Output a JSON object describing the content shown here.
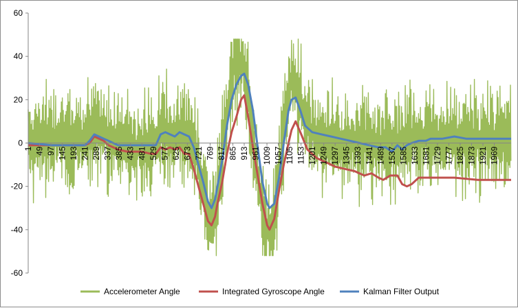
{
  "chart_data": {
    "type": "line",
    "title": "",
    "xlabel": "",
    "ylabel": "",
    "ylim": [
      -60,
      60
    ],
    "yticks": [
      -60,
      -40,
      -20,
      0,
      20,
      40,
      60
    ],
    "xlim": [
      1,
      2040
    ],
    "xticks": [
      1,
      49,
      97,
      145,
      193,
      241,
      289,
      337,
      385,
      433,
      481,
      529,
      577,
      625,
      673,
      721,
      769,
      817,
      865,
      913,
      961,
      1009,
      1057,
      1105,
      1153,
      1201,
      1249,
      1297,
      1345,
      1393,
      1441,
      1489,
      1537,
      1585,
      1633,
      1681,
      1729,
      1777,
      1825,
      1873,
      1921,
      1969
    ],
    "legend_position": "bottom",
    "grid": false,
    "series": [
      {
        "name": "Accelerometer Angle",
        "color": "#9bbb59",
        "noisy": true,
        "x": [
          1,
          60,
          120,
          180,
          241,
          280,
          320,
          360,
          400,
          440,
          480,
          520,
          560,
          600,
          640,
          680,
          700,
          720,
          740,
          760,
          775,
          790,
          810,
          830,
          850,
          870,
          890,
          910,
          930,
          950,
          970,
          990,
          1010,
          1030,
          1050,
          1070,
          1090,
          1110,
          1130,
          1150,
          1170,
          1200,
          1250,
          1300,
          1350,
          1400,
          1450,
          1500,
          1537,
          1560,
          1600,
          1650,
          1700,
          1750,
          1800,
          1850,
          1900,
          1950,
          2000,
          2040
        ],
        "y": [
          1,
          3,
          2,
          2,
          1,
          5,
          5,
          2,
          0,
          -2,
          -3,
          -2,
          5,
          3,
          4,
          3,
          -2,
          -10,
          -22,
          -35,
          -40,
          -32,
          -15,
          5,
          22,
          35,
          38,
          35,
          22,
          5,
          -15,
          -32,
          -40,
          -38,
          -25,
          -5,
          15,
          28,
          28,
          20,
          10,
          5,
          2,
          0,
          0,
          0,
          0,
          -1,
          -3,
          -1,
          1,
          2,
          3,
          2,
          1,
          1,
          2,
          2,
          2,
          2
        ]
      },
      {
        "name": "Integrated Gyroscope Angle",
        "color": "#c0504d",
        "noisy": false,
        "x": [
          1,
          100,
          241,
          260,
          280,
          300,
          320,
          340,
          360,
          380,
          420,
          480,
          520,
          540,
          560,
          580,
          600,
          620,
          640,
          660,
          680,
          700,
          720,
          740,
          760,
          775,
          790,
          800,
          820,
          840,
          860,
          880,
          900,
          913,
          930,
          950,
          970,
          990,
          1010,
          1020,
          1040,
          1060,
          1080,
          1100,
          1113,
          1130,
          1150,
          1180,
          1220,
          1260,
          1300,
          1340,
          1380,
          1420,
          1450,
          1480,
          1500,
          1530,
          1560,
          1580,
          1600,
          1620,
          1650,
          1680,
          1720,
          1800,
          1900,
          2040
        ],
        "y": [
          -1,
          -1,
          -1,
          0,
          3,
          2,
          1,
          -1,
          -2,
          -3,
          -4,
          -4,
          -5,
          -5,
          -2,
          -3,
          -2,
          -3,
          -2,
          -5,
          -5,
          -12,
          -20,
          -28,
          -36,
          -38,
          -34,
          -28,
          -18,
          -5,
          5,
          12,
          20,
          22,
          12,
          -2,
          -15,
          -28,
          -38,
          -40,
          -35,
          -22,
          -10,
          0,
          6,
          10,
          5,
          -3,
          -7,
          -9,
          -11,
          -12,
          -13,
          -15,
          -14,
          -16,
          -17,
          -15,
          -15,
          -19,
          -20,
          -19,
          -16,
          -16,
          -16,
          -16,
          -17,
          -17
        ]
      },
      {
        "name": "Kalman Filter Output",
        "color": "#4f81bd",
        "noisy": false,
        "x": [
          1,
          100,
          241,
          260,
          280,
          300,
          320,
          340,
          360,
          380,
          420,
          480,
          520,
          540,
          560,
          580,
          600,
          620,
          640,
          660,
          680,
          700,
          720,
          740,
          760,
          775,
          790,
          800,
          820,
          840,
          860,
          880,
          900,
          913,
          930,
          950,
          970,
          990,
          1010,
          1020,
          1040,
          1060,
          1080,
          1100,
          1113,
          1130,
          1150,
          1170,
          1200,
          1240,
          1280,
          1320,
          1360,
          1400,
          1440,
          1480,
          1510,
          1537,
          1560,
          1580,
          1600,
          1620,
          1650,
          1680,
          1700,
          1750,
          1800,
          1850,
          1900,
          1950,
          2000,
          2040
        ],
        "y": [
          0,
          -1,
          -1,
          1,
          4,
          3,
          2,
          1,
          0,
          -1,
          -1,
          -1,
          -1,
          -1,
          4,
          5,
          4,
          3,
          5,
          4,
          3,
          -2,
          -10,
          -18,
          -27,
          -30,
          -26,
          -20,
          -8,
          8,
          20,
          27,
          31,
          32,
          27,
          15,
          -2,
          -18,
          -28,
          -30,
          -28,
          -16,
          0,
          15,
          20,
          21,
          15,
          8,
          5,
          4,
          3,
          2,
          1,
          0,
          -1,
          -2,
          -2,
          -4,
          -1,
          -3,
          -1,
          0,
          1,
          1,
          2,
          2,
          3,
          2,
          2,
          2,
          2,
          2
        ]
      }
    ]
  }
}
